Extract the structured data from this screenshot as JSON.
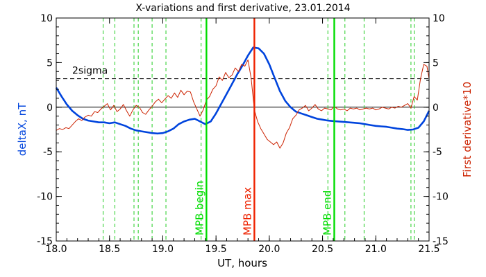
{
  "chart_data": {
    "type": "line",
    "title": "X-variations and first derivative, 23.01.2014",
    "xlabel": "UT, hours",
    "ylabel_left": "deltaX, nT",
    "ylabel_right": "First derivative*10",
    "xlim": [
      18.0,
      21.5
    ],
    "ylim": [
      -15,
      10
    ],
    "x_ticks": [
      18.0,
      18.5,
      19.0,
      19.5,
      20.0,
      20.5,
      21.0,
      21.5
    ],
    "x_tick_labels": [
      "18.0",
      "18.5",
      "19.0",
      "19.5",
      "20.0",
      "20.5",
      "21.0",
      "21.5"
    ],
    "y_ticks": [
      10,
      5,
      0,
      -5,
      -10,
      -15
    ],
    "y_tick_labels": [
      "10",
      "5",
      "0",
      "-5",
      "-10",
      "-15"
    ],
    "colors": {
      "deltaX": "#0044dd",
      "derivative": "#cc2200",
      "mpb_edges": "#00dd00",
      "mpb_max": "#ee2200",
      "markers": "#22cc22",
      "sigma": "#000000"
    },
    "sigma_line": {
      "label": "2sigma",
      "y": 3.2
    },
    "zero_line": 0,
    "vlines_solid": [
      {
        "x": 19.41,
        "label": "MPB begin",
        "color": "#00dd00"
      },
      {
        "x": 19.86,
        "label": "MPB max",
        "color": "#ee2200"
      },
      {
        "x": 20.61,
        "label": "MPB end",
        "color": "#00dd00"
      }
    ],
    "vlines_dashed": [
      18.44,
      18.55,
      18.73,
      18.77,
      18.9,
      19.03,
      19.36,
      20.55,
      20.71,
      20.89,
      21.33,
      21.36
    ],
    "series": [
      {
        "name": "deltaX",
        "color": "#0044dd",
        "x": [
          18.0,
          18.05,
          18.1,
          18.15,
          18.2,
          18.25,
          18.3,
          18.35,
          18.4,
          18.45,
          18.5,
          18.55,
          18.6,
          18.65,
          18.7,
          18.75,
          18.8,
          18.85,
          18.9,
          18.95,
          19.0,
          19.05,
          19.1,
          19.15,
          19.2,
          19.25,
          19.3,
          19.35,
          19.4,
          19.45,
          19.5,
          19.55,
          19.6,
          19.65,
          19.7,
          19.75,
          19.8,
          19.85,
          19.9,
          19.95,
          20.0,
          20.05,
          20.1,
          20.15,
          20.2,
          20.25,
          20.3,
          20.35,
          20.4,
          20.45,
          20.5,
          20.55,
          20.6,
          20.65,
          20.7,
          20.75,
          20.8,
          20.85,
          20.9,
          20.95,
          21.0,
          21.05,
          21.1,
          21.15,
          21.2,
          21.25,
          21.3,
          21.35,
          21.4,
          21.45,
          21.5
        ],
        "values": [
          2.2,
          1.2,
          0.3,
          -0.4,
          -0.9,
          -1.3,
          -1.5,
          -1.6,
          -1.7,
          -1.7,
          -1.8,
          -1.7,
          -1.9,
          -2.1,
          -2.4,
          -2.6,
          -2.7,
          -2.8,
          -2.9,
          -2.95,
          -2.9,
          -2.7,
          -2.4,
          -1.9,
          -1.6,
          -1.4,
          -1.3,
          -1.6,
          -1.9,
          -1.6,
          -0.7,
          0.4,
          1.5,
          2.6,
          3.7,
          4.7,
          5.8,
          6.7,
          6.6,
          6.0,
          4.8,
          3.3,
          1.8,
          0.7,
          0.0,
          -0.5,
          -0.7,
          -0.9,
          -1.1,
          -1.3,
          -1.4,
          -1.5,
          -1.55,
          -1.6,
          -1.65,
          -1.7,
          -1.75,
          -1.8,
          -1.9,
          -2.0,
          -2.1,
          -2.15,
          -2.2,
          -2.3,
          -2.4,
          -2.45,
          -2.55,
          -2.5,
          -2.3,
          -1.6,
          -0.4
        ]
      },
      {
        "name": "First derivative*10",
        "color": "#cc2200",
        "x": [
          18.0,
          18.03,
          18.06,
          18.09,
          18.12,
          18.15,
          18.18,
          18.21,
          18.24,
          18.27,
          18.3,
          18.33,
          18.36,
          18.39,
          18.42,
          18.45,
          18.48,
          18.51,
          18.54,
          18.57,
          18.6,
          18.63,
          18.66,
          18.69,
          18.72,
          18.75,
          18.78,
          18.81,
          18.84,
          18.87,
          18.9,
          18.93,
          18.96,
          18.99,
          19.02,
          19.05,
          19.08,
          19.11,
          19.14,
          19.17,
          19.2,
          19.23,
          19.26,
          19.29,
          19.32,
          19.35,
          19.38,
          19.41,
          19.44,
          19.47,
          19.5,
          19.53,
          19.56,
          19.59,
          19.62,
          19.65,
          19.68,
          19.71,
          19.74,
          19.77,
          19.8,
          19.83,
          19.86,
          19.89,
          19.92,
          19.95,
          19.98,
          20.01,
          20.04,
          20.07,
          20.1,
          20.13,
          20.16,
          20.19,
          20.22,
          20.25,
          20.28,
          20.31,
          20.34,
          20.37,
          20.4,
          20.43,
          20.46,
          20.49,
          20.52,
          20.55,
          20.58,
          20.61,
          20.64,
          20.67,
          20.7,
          20.73,
          20.76,
          20.79,
          20.82,
          20.85,
          20.88,
          20.91,
          20.94,
          20.97,
          21.0,
          21.03,
          21.06,
          21.09,
          21.12,
          21.15,
          21.18,
          21.21,
          21.24,
          21.27,
          21.3,
          21.33,
          21.36,
          21.39,
          21.42,
          21.45,
          21.48,
          21.5
        ],
        "values": [
          -2.6,
          -2.4,
          -2.5,
          -2.3,
          -2.4,
          -2.0,
          -1.6,
          -1.3,
          -1.5,
          -1.1,
          -0.9,
          -1.0,
          -0.5,
          -0.6,
          -0.2,
          0.1,
          0.4,
          -0.3,
          0.2,
          -0.5,
          -0.2,
          0.3,
          -0.4,
          -1.0,
          -0.3,
          0.2,
          0.0,
          -0.6,
          -0.8,
          -0.3,
          0.1,
          0.6,
          0.9,
          0.5,
          0.9,
          1.3,
          1.0,
          1.6,
          1.1,
          1.9,
          1.4,
          1.8,
          1.7,
          0.6,
          -0.2,
          -1.0,
          -0.3,
          0.8,
          1.2,
          2.0,
          2.4,
          3.4,
          3.0,
          3.9,
          3.3,
          3.6,
          4.4,
          4.0,
          4.8,
          4.6,
          5.3,
          3.2,
          -0.3,
          -1.6,
          -2.4,
          -3.0,
          -3.6,
          -3.9,
          -4.2,
          -3.9,
          -4.6,
          -4.0,
          -2.9,
          -2.3,
          -1.3,
          -0.9,
          -0.3,
          -0.1,
          0.2,
          -0.4,
          -0.1,
          0.3,
          -0.2,
          -0.4,
          -0.1,
          -0.2,
          -0.3,
          0.1,
          -0.2,
          -0.3,
          -0.2,
          -0.4,
          -0.1,
          -0.2,
          -0.1,
          -0.3,
          -0.2,
          -0.1,
          -0.2,
          -0.1,
          -0.3,
          -0.2,
          0.0,
          -0.1,
          -0.2,
          0.0,
          -0.1,
          0.1,
          0.0,
          0.2,
          0.4,
          -0.1,
          1.2,
          0.8,
          3.2,
          4.8,
          4.6,
          3.2
        ]
      }
    ]
  }
}
